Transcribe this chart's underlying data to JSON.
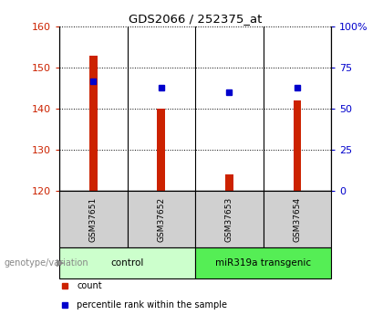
{
  "title": "GDS2066 / 252375_at",
  "samples": [
    "GSM37651",
    "GSM37652",
    "GSM37653",
    "GSM37654"
  ],
  "counts": [
    153.0,
    140.0,
    124.0,
    142.0
  ],
  "percentiles": [
    67,
    63,
    60,
    63
  ],
  "ylim_left": [
    120,
    160
  ],
  "ylim_right": [
    0,
    100
  ],
  "yticks_left": [
    120,
    130,
    140,
    150,
    160
  ],
  "yticks_right": [
    0,
    25,
    50,
    75,
    100
  ],
  "yticklabels_right": [
    "0",
    "25",
    "50",
    "75",
    "100%"
  ],
  "bar_color": "#cc2200",
  "dot_color": "#0000cc",
  "groups": [
    {
      "label": "control",
      "samples": [
        0,
        1
      ],
      "color": "#ccffcc"
    },
    {
      "label": "miR319a transgenic",
      "samples": [
        2,
        3
      ],
      "color": "#55ee55"
    }
  ],
  "group_label": "genotype/variation",
  "legend_items": [
    {
      "label": "count",
      "color": "#cc2200"
    },
    {
      "label": "percentile rank within the sample",
      "color": "#0000cc"
    }
  ],
  "grid_color": "black",
  "grid_style": "dotted",
  "bar_width": 0.12,
  "xlabel_color": "#cc2200",
  "ylabel_right_color": "#0000cc",
  "sample_box_color": "#d0d0d0"
}
